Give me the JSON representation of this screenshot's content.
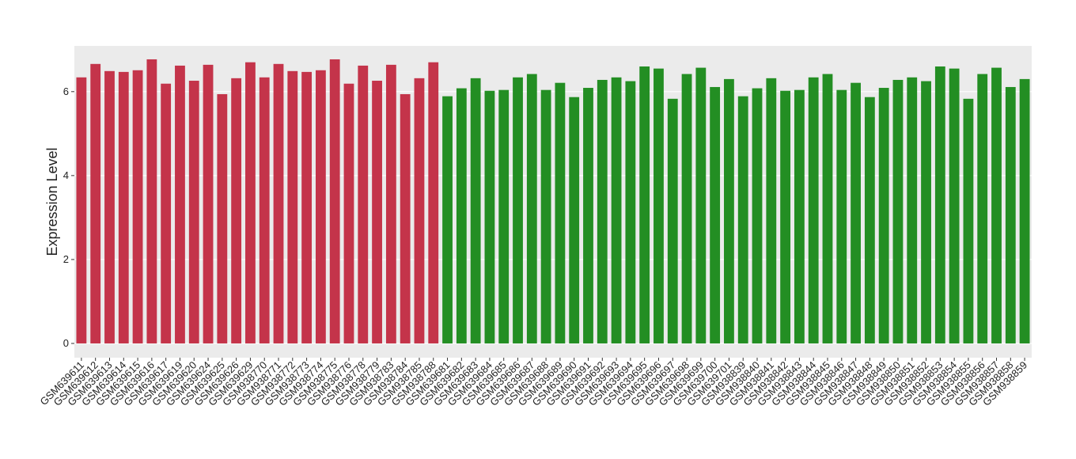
{
  "chart_data": {
    "type": "bar",
    "y_label": "Expression Level",
    "categories": [
      "GSM639611",
      "GSM639612",
      "GSM639613",
      "GSM639614",
      "GSM639615",
      "GSM639616",
      "GSM639617",
      "GSM639619",
      "GSM639620",
      "GSM639624",
      "GSM639625",
      "GSM639626",
      "GSM639629",
      "GSM938770",
      "GSM938771",
      "GSM938772",
      "GSM938773",
      "GSM938774",
      "GSM938775",
      "GSM938776",
      "GSM938778",
      "GSM938779",
      "GSM938783",
      "GSM938784",
      "GSM938785",
      "GSM938788",
      "GSM639681",
      "GSM639682",
      "GSM639683",
      "GSM639684",
      "GSM639685",
      "GSM639686",
      "GSM639687",
      "GSM639688",
      "GSM639689",
      "GSM639690",
      "GSM639691",
      "GSM639692",
      "GSM639693",
      "GSM639694",
      "GSM639695",
      "GSM639696",
      "GSM639697",
      "GSM639698",
      "GSM639699",
      "GSM639700",
      "GSM639701",
      "GSM938839",
      "GSM938840",
      "GSM938841",
      "GSM938842",
      "GSM938843",
      "GSM938844",
      "GSM938845",
      "GSM938846",
      "GSM938847",
      "GSM938848",
      "GSM938849",
      "GSM938850",
      "GSM938851",
      "GSM938852",
      "GSM938853",
      "GSM938854",
      "GSM938855",
      "GSM938856",
      "GSM938857",
      "GSM938858",
      "GSM938859"
    ],
    "values": [
      6.34,
      6.66,
      6.49,
      6.47,
      6.51,
      6.77,
      6.19,
      6.62,
      6.26,
      6.64,
      5.94,
      6.32,
      6.7,
      6.34,
      6.66,
      6.49,
      6.47,
      6.51,
      6.77,
      6.19,
      6.62,
      6.26,
      6.64,
      5.94,
      6.32,
      6.7,
      5.89,
      6.08,
      6.32,
      6.02,
      6.04,
      6.34,
      6.42,
      6.04,
      6.21,
      5.87,
      6.09,
      6.28,
      6.34,
      6.25,
      6.6,
      6.55,
      5.83,
      6.42,
      6.57,
      6.11,
      6.3,
      5.89,
      6.08,
      6.32,
      6.02,
      6.04,
      6.34,
      6.42,
      6.04,
      6.21,
      5.87,
      6.09,
      6.28,
      6.34,
      6.25,
      6.6,
      6.55,
      5.83,
      6.42,
      6.57,
      6.11,
      6.3
    ],
    "colors": [
      "#c4344a",
      "#c4344a",
      "#c4344a",
      "#c4344a",
      "#c4344a",
      "#c4344a",
      "#c4344a",
      "#c4344a",
      "#c4344a",
      "#c4344a",
      "#c4344a",
      "#c4344a",
      "#c4344a",
      "#c4344a",
      "#c4344a",
      "#c4344a",
      "#c4344a",
      "#c4344a",
      "#c4344a",
      "#c4344a",
      "#c4344a",
      "#c4344a",
      "#c4344a",
      "#c4344a",
      "#c4344a",
      "#c4344a",
      "#238e23",
      "#238e23",
      "#238e23",
      "#238e23",
      "#238e23",
      "#238e23",
      "#238e23",
      "#238e23",
      "#238e23",
      "#238e23",
      "#238e23",
      "#238e23",
      "#238e23",
      "#238e23",
      "#238e23",
      "#238e23",
      "#238e23",
      "#238e23",
      "#238e23",
      "#238e23",
      "#238e23",
      "#238e23",
      "#238e23",
      "#238e23",
      "#238e23",
      "#238e23",
      "#238e23",
      "#238e23",
      "#238e23",
      "#238e23",
      "#238e23",
      "#238e23",
      "#238e23",
      "#238e23",
      "#238e23",
      "#238e23",
      "#238e23",
      "#238e23",
      "#238e23",
      "#238e23",
      "#238e23",
      "#238e23"
    ],
    "ylim": [
      -0.34,
      7.09
    ],
    "yticks": [
      0,
      2,
      4,
      6
    ],
    "grid": true
  }
}
